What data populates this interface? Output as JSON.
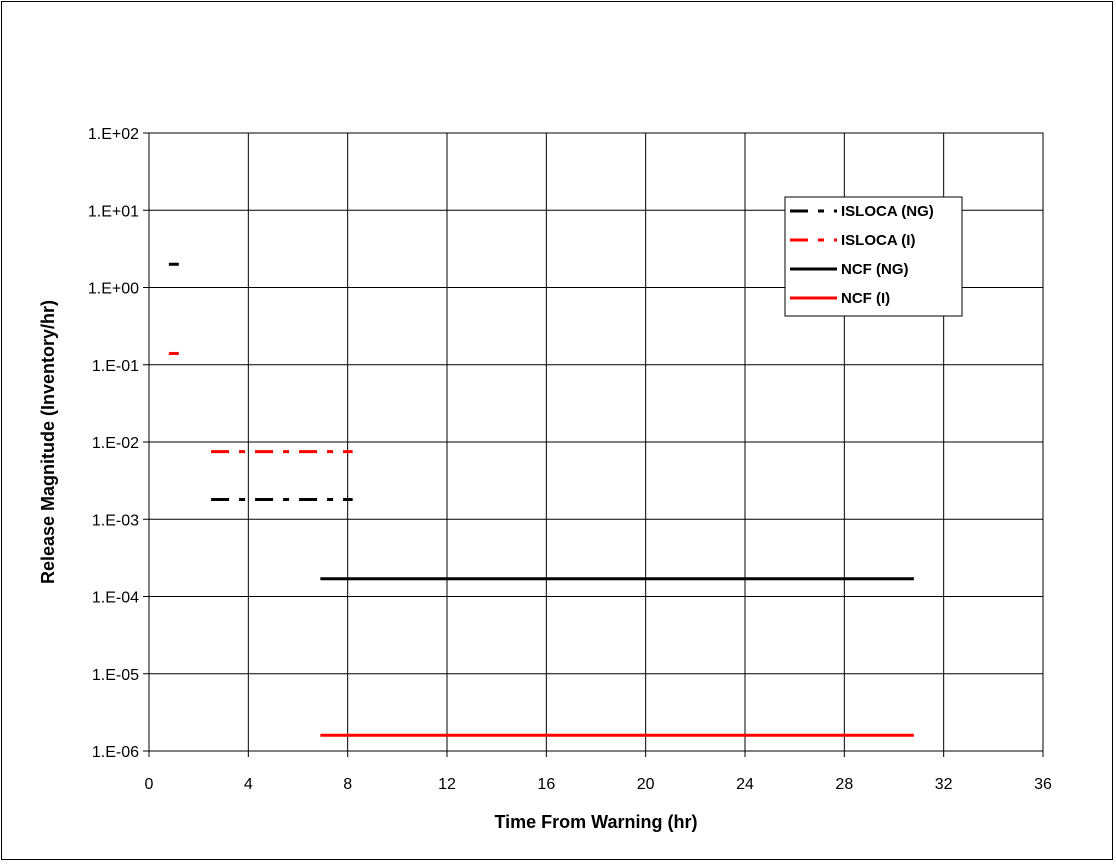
{
  "chart_data": {
    "type": "line",
    "title": "",
    "xlabel": "Time From Warning (hr)",
    "ylabel": "Release Magnitude (Inventory/hr)",
    "xlim": [
      0,
      36
    ],
    "ylim": [
      1e-06,
      100
    ],
    "yscale": "log",
    "grid": true,
    "legend_position": "top-right",
    "x_ticks": [
      0,
      4,
      8,
      12,
      16,
      20,
      24,
      28,
      32,
      36
    ],
    "x_tick_labels": [
      "0",
      "4",
      "8",
      "12",
      "16",
      "20",
      "24",
      "28",
      "32",
      "36"
    ],
    "y_ticks": [
      1e-06,
      1e-05,
      0.0001,
      0.001,
      0.01,
      0.1,
      1,
      10,
      100
    ],
    "y_tick_labels": [
      "1.E-06",
      "1.E-05",
      "1.E-04",
      "1.E-03",
      "1.E-02",
      "1.E-01",
      "1.E+00",
      "1.E+01",
      "1.E+02"
    ],
    "series": [
      {
        "name": "ISLOCA (NG)",
        "color": "#000000",
        "style": "dash-dot",
        "segments": [
          {
            "x": [
              0.8,
              1.2
            ],
            "y": 2.0
          },
          {
            "x": [
              2.5,
              8.2
            ],
            "y": 0.0018
          }
        ]
      },
      {
        "name": "ISLOCA (I)",
        "color": "#ff0000",
        "style": "dash-dot",
        "segments": [
          {
            "x": [
              0.8,
              1.2
            ],
            "y": 0.14
          },
          {
            "x": [
              2.5,
              8.2
            ],
            "y": 0.0075
          }
        ]
      },
      {
        "name": "NCF (NG)",
        "color": "#000000",
        "style": "solid",
        "segments": [
          {
            "x": [
              6.9,
              30.8
            ],
            "y": 0.00017
          }
        ]
      },
      {
        "name": "NCF (I)",
        "color": "#ff0000",
        "style": "solid",
        "segments": [
          {
            "x": [
              6.9,
              30.8
            ],
            "y": 1.6e-06
          }
        ]
      }
    ]
  }
}
